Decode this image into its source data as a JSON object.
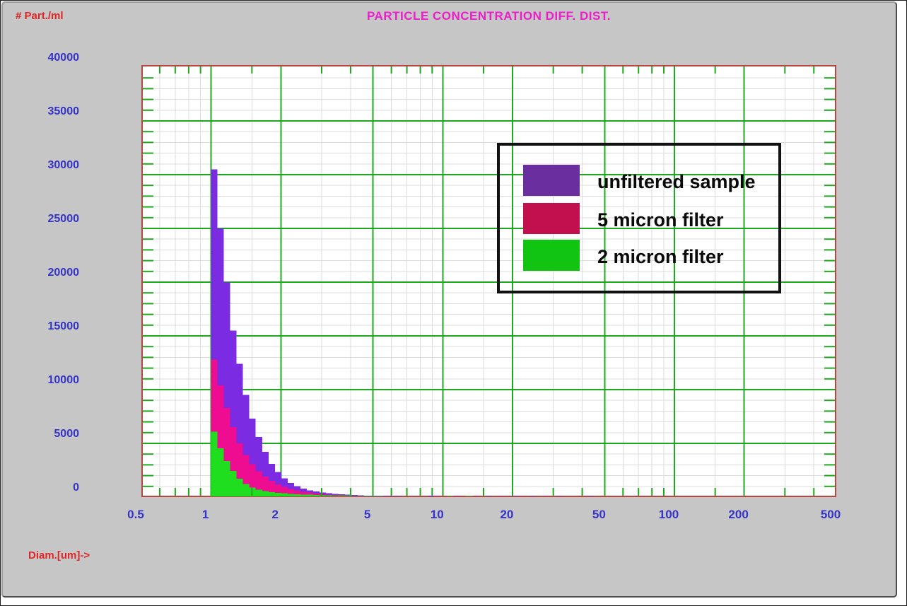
{
  "header": {
    "title": "PARTICLE CONCENTRATION DIFF. DIST.",
    "y_unit_label": "# Part./ml"
  },
  "x_axis": {
    "label": "Diam.[um]->",
    "tick_labels": [
      "0.5",
      "1",
      "2",
      "5",
      "10",
      "20",
      "50",
      "100",
      "200",
      "500"
    ]
  },
  "y_axis": {
    "tick_labels": [
      "0",
      "5000",
      "10000",
      "15000",
      "20000",
      "25000",
      "30000",
      "35000",
      "40000"
    ]
  },
  "legend": {
    "items": [
      {
        "label": "unfiltered sample",
        "swatch_color": "#6b2e9e"
      },
      {
        "label": "5 micron filter",
        "swatch_color": "#c2104e"
      },
      {
        "label": "2 micron filter",
        "swatch_color": "#12c412"
      }
    ]
  },
  "text_colors": {
    "title": "#ee1ccb",
    "axis_unit_labels": "#e02525",
    "tick_labels": "#3533c8"
  },
  "chart_data": {
    "type": "bar",
    "subtype": "log-histogram, overlapping series drawn back-to-front from same baseline",
    "title": "PARTICLE CONCENTRATION DIFF. DIST.",
    "xlabel": "Diam.[um]->",
    "ylabel": "# Part./ml",
    "x_scale": "log",
    "x_range": [
      0.5,
      500
    ],
    "y_range": [
      0,
      40000
    ],
    "grid": "on",
    "legend_position": "upper-right-inside",
    "x_major_gridlines": [
      1,
      2,
      5,
      10,
      20,
      50,
      100,
      200
    ],
    "x_minor_gridlines": [
      0.6,
      0.7,
      0.8,
      0.9,
      1.5,
      3,
      4,
      6,
      7,
      8,
      9,
      15,
      30,
      40,
      60,
      70,
      80,
      90,
      150,
      300,
      400
    ],
    "y_major_step": 5000,
    "y_minor_step": 1000,
    "bin_start": 1.0,
    "bin_ratio": 1.0654,
    "series": [
      {
        "name": "unfiltered sample",
        "color": "#7b2be2",
        "values": [
          30500,
          25000,
          20000,
          15500,
          12400,
          9500,
          7300,
          5600,
          4200,
          3100,
          2350,
          1750,
          1320,
          1010,
          790,
          630,
          510,
          420,
          350,
          295,
          252,
          218,
          190,
          167,
          148,
          132,
          118,
          106,
          96,
          87,
          79,
          72,
          66,
          0,
          120,
          0,
          0,
          110,
          0,
          0,
          105,
          0,
          0,
          100,
          0,
          0,
          0,
          100,
          0,
          0,
          95,
          0,
          0,
          0,
          90,
          0,
          0,
          0,
          0,
          90
        ]
      },
      {
        "name": "5 micron filter",
        "color": "#ee0d90",
        "values": [
          12800,
          10400,
          8300,
          6500,
          5000,
          3900,
          3050,
          2400,
          1900,
          1510,
          1200,
          960,
          770,
          620,
          505,
          415,
          345,
          290,
          245,
          210,
          182,
          158,
          139,
          123,
          110,
          99,
          89,
          81,
          74,
          67,
          62,
          57,
          52,
          48,
          0,
          100,
          0,
          0,
          95,
          0,
          0,
          90,
          0,
          0,
          0,
          90,
          0,
          0,
          85,
          0,
          0,
          0,
          85,
          0,
          0,
          0,
          80,
          0,
          0,
          0
        ]
      },
      {
        "name": "2 micron filter",
        "color": "#1fdd1f",
        "values": [
          6100,
          4550,
          3350,
          2420,
          1720,
          1230,
          900,
          700,
          565,
          470,
          400,
          347,
          305,
          270,
          241,
          217,
          196,
          178,
          162,
          148,
          136,
          125,
          115,
          106,
          98,
          91,
          85,
          79,
          74,
          69,
          64,
          60,
          56,
          53,
          50,
          0,
          0,
          90,
          0,
          0,
          85,
          0,
          0,
          80,
          0,
          0,
          0,
          80,
          0,
          0,
          75,
          0,
          0,
          0,
          75,
          0,
          0,
          0,
          0,
          70
        ]
      }
    ],
    "colors": {
      "plot_bg": "#ffffff",
      "plot_border": "#b8463e",
      "grid_major": "#1da81d",
      "grid_minor": "#dcdcdc"
    }
  }
}
